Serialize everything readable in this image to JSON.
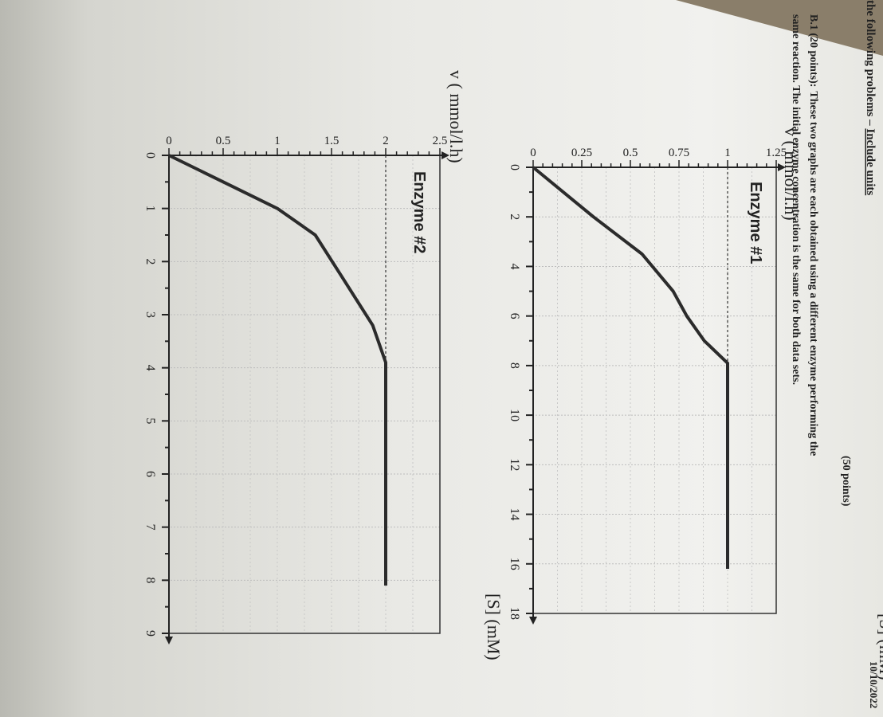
{
  "header": {
    "date": "10/10/2022",
    "intro": "the following problems – ",
    "include_units": "Include units",
    "points_total": "(50 points)",
    "question_label": "B.1 (20 points):",
    "question_line1": "These two graphs are each obtained using a different enzyme performing the",
    "question_line2": "same reaction. The initial enzyme concentration is the same for both data sets."
  },
  "chart_data": [
    {
      "type": "line",
      "title": "Enzyme #1",
      "xlabel": "[S] (mM)",
      "ylabel": "v ( mmol/l.h)",
      "xlim": [
        0,
        18
      ],
      "ylim": [
        0,
        1.25
      ],
      "xticks": [
        0,
        2,
        4,
        6,
        8,
        10,
        12,
        14,
        16,
        18
      ],
      "xtick_labels": [
        "0",
        "2",
        "4",
        "6",
        "8",
        "10",
        "12",
        "14",
        "16",
        "18"
      ],
      "yticks": [
        0,
        0.25,
        0.5,
        0.75,
        1,
        1.25
      ],
      "ytick_labels": [
        "0",
        "0.25",
        "0.5",
        "0.75",
        "1",
        "1.25"
      ],
      "grid": true,
      "reference_line": {
        "y": 1,
        "style": "dashed"
      },
      "series": [
        {
          "x": [
            0,
            2,
            3.5,
            5,
            6,
            7,
            7.9,
            16.2
          ],
          "y": [
            0,
            0.31,
            0.56,
            0.72,
            0.79,
            0.88,
            1.0,
            1.0
          ]
        }
      ]
    },
    {
      "type": "line",
      "title": "Enzyme #2",
      "xlabel": "[S] (mM)",
      "ylabel": "v ( mmol/l.h)",
      "xlim": [
        0,
        9
      ],
      "ylim": [
        0,
        2.5
      ],
      "xticks": [
        0,
        1,
        2,
        3,
        4,
        5,
        6,
        7,
        8,
        9
      ],
      "xtick_labels": [
        "0",
        "1",
        "2",
        "3",
        "4",
        "5",
        "6",
        "7",
        "8",
        "9"
      ],
      "yticks": [
        0,
        0.5,
        1,
        1.5,
        2,
        2.5
      ],
      "ytick_labels": [
        "0",
        "0.5",
        "1",
        "1.5",
        "2",
        "2.5"
      ],
      "grid": true,
      "reference_line": {
        "y": 2,
        "style": "dashed"
      },
      "series": [
        {
          "x": [
            0,
            0.5,
            1,
            1.5,
            2.3,
            3.2,
            3.9,
            8.1
          ],
          "y": [
            0,
            0.5,
            1.0,
            1.35,
            1.6,
            1.88,
            2.0,
            2.0
          ]
        }
      ]
    }
  ]
}
